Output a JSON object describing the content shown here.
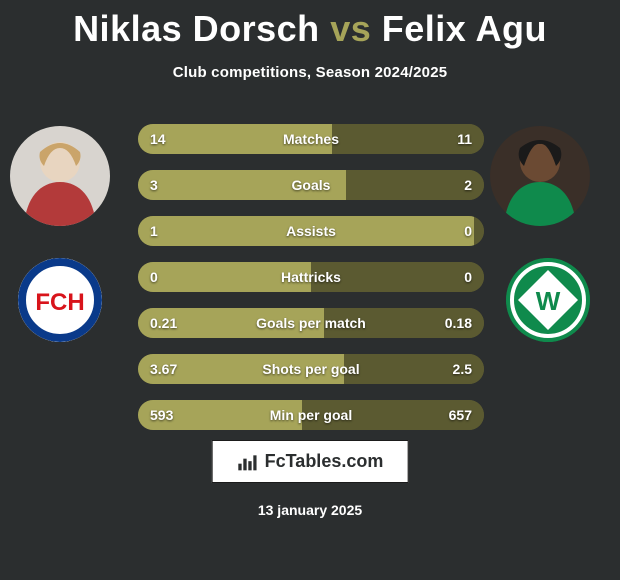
{
  "title": {
    "player1": "Niklas Dorsch",
    "vs": "vs",
    "player2": "Felix Agu",
    "fontsize": 36,
    "color_player": "#ffffff",
    "color_vs": "#a6a459"
  },
  "subtitle": {
    "text": "Club competitions, Season 2024/2025",
    "fontsize": 15,
    "color": "#ffffff"
  },
  "background_color": "#2b2e2f",
  "avatars": {
    "left": {
      "name": "niklas-dorsch-photo",
      "bg": "#d8d4cf"
    },
    "right": {
      "name": "felix-agu-photo",
      "bg": "#3a2f28"
    }
  },
  "clubs": {
    "left": {
      "name": "fc-heidenheim-logo",
      "bg": "#ffffff",
      "ring": "#0a3a8a",
      "text": "FCH",
      "text_color": "#d8141b"
    },
    "right": {
      "name": "werder-bremen-logo",
      "bg": "#0f8a4c",
      "diamond": "#ffffff",
      "text": "W",
      "text_color": "#0f8a4c"
    }
  },
  "bars": {
    "left_color": "#a6a459",
    "right_color": "#5b5a31",
    "track_color": "#5b5a31",
    "height": 30,
    "gap": 16,
    "radius": 15,
    "label_color": "#ffffff",
    "label_fontsize": 14,
    "value_fontsize": 14,
    "rows": [
      {
        "label": "Matches",
        "left": "14",
        "right": "11",
        "left_num": 14,
        "right_num": 11
      },
      {
        "label": "Goals",
        "left": "3",
        "right": "2",
        "left_num": 3,
        "right_num": 2
      },
      {
        "label": "Assists",
        "left": "1",
        "right": "0",
        "left_num": 1,
        "right_num": 0
      },
      {
        "label": "Hattricks",
        "left": "0",
        "right": "0",
        "left_num": 0,
        "right_num": 0
      },
      {
        "label": "Goals per match",
        "left": "0.21",
        "right": "0.18",
        "left_num": 0.21,
        "right_num": 0.18
      },
      {
        "label": "Shots per goal",
        "left": "3.67",
        "right": "2.5",
        "left_num": 3.67,
        "right_num": 2.5
      },
      {
        "label": "Min per goal",
        "left": "593",
        "right": "657",
        "left_num": 593,
        "right_num": 657
      }
    ]
  },
  "footer": {
    "brand": "FcTables.com",
    "icon": "bar-chart-icon",
    "bg": "#ffffff",
    "border": "#1b1b1b",
    "color": "#2b2e2f"
  },
  "date": {
    "text": "13 january 2025",
    "color": "#ffffff",
    "fontsize": 14
  }
}
